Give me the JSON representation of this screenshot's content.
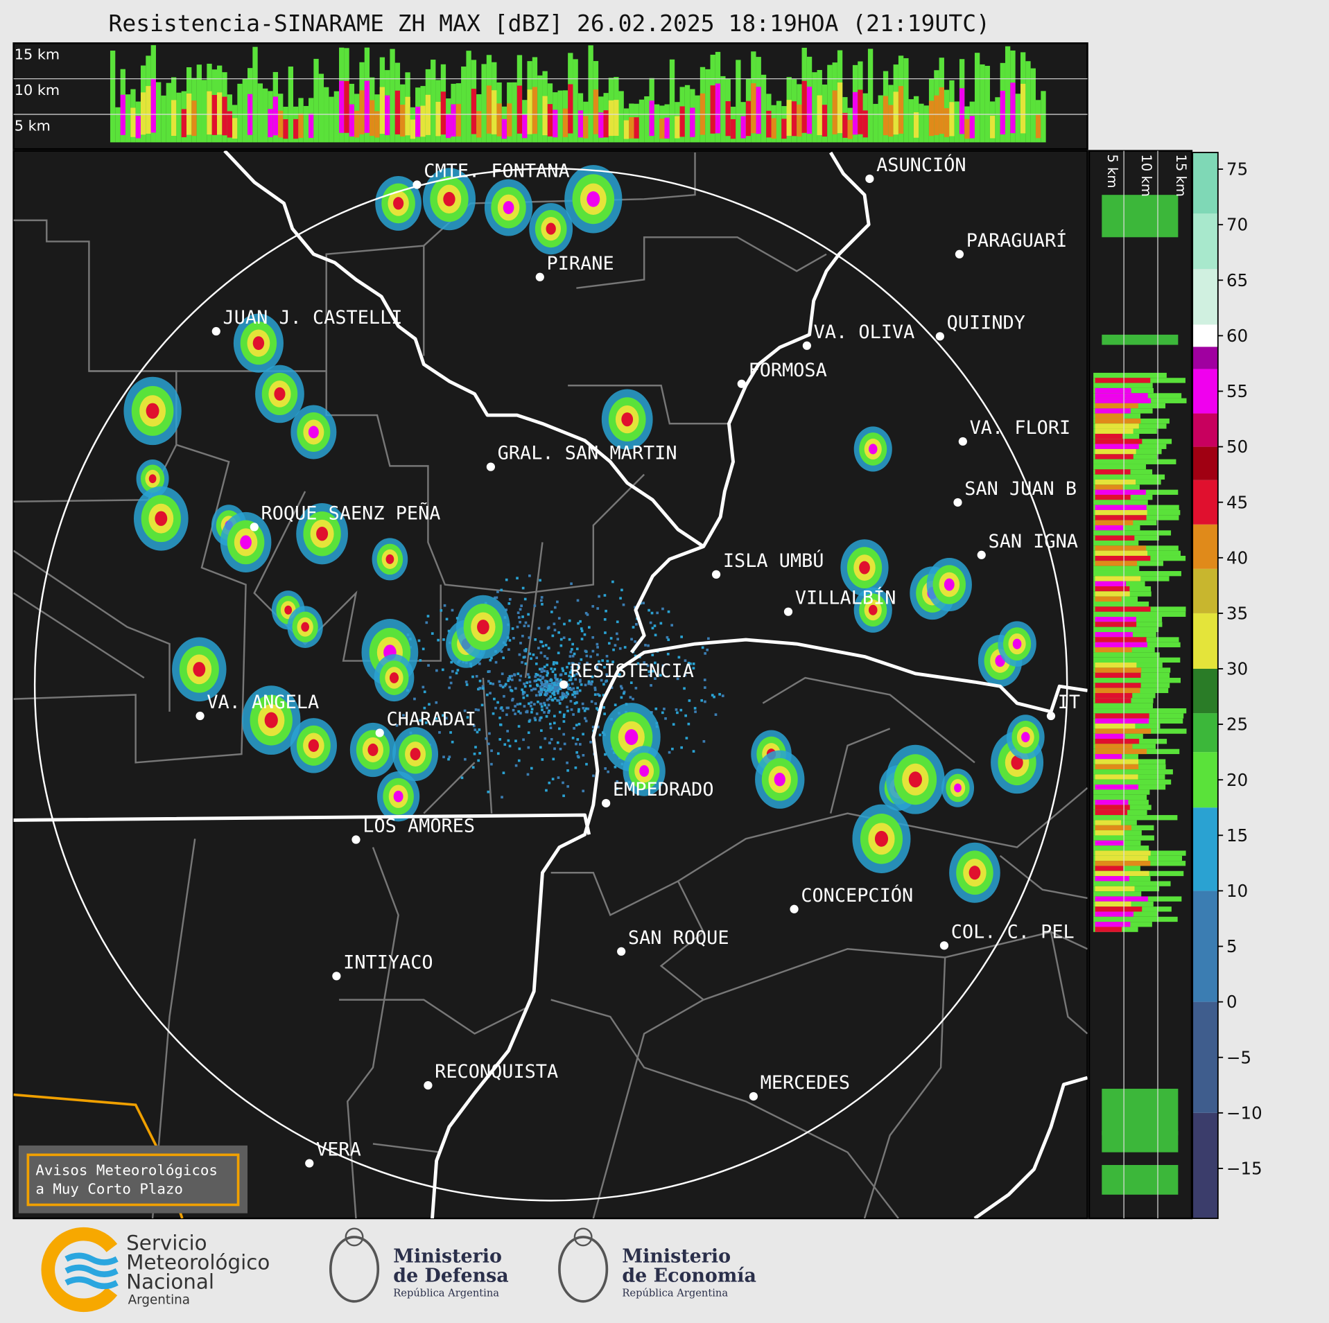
{
  "title": "Resistencia-SINARAME ZH MAX [dBZ] 26.02.2025 18:19HOA (21:19UTC)",
  "cross_section_top": {
    "labels": [
      "15 km",
      "10 km",
      "5 km"
    ]
  },
  "cross_section_right": {
    "labels": [
      "5 km",
      "10 km",
      "15 km"
    ]
  },
  "map": {
    "cities": [
      "CMTE. FONTANA",
      "PIRANE",
      "JUAN J. CASTELLI",
      "ASUNCIÓN",
      "PARAGUARÍ",
      "VA. OLIVA",
      "QUIINDY",
      "FORMOSA",
      "VA. FLORI",
      "GRAL. SAN MARTIN",
      "SAN JUAN B",
      "ROQUE SAENZ PEÑA",
      "SAN IGNA",
      "ISLA UMBÚ",
      "VILLALBÍN",
      "RESISTENCIA",
      "VA. ANGELA",
      "CHARADAI",
      "EMPEDRADO",
      "LOS AMORES",
      "CONCEPCIÓN",
      "COL. C. PEL",
      "SAN ROQUE",
      "INTIYACO",
      "RECONQUISTA",
      "MERCEDES",
      "VERA",
      "IT"
    ]
  },
  "notice": {
    "lines": [
      "Avisos Meteorológicos",
      "a Muy Corto Plazo"
    ]
  },
  "colorbar": {
    "type": "colorbar",
    "ylim": [
      -19.5,
      76.5
    ],
    "yticks": [
      75,
      70,
      65,
      60,
      55,
      50,
      45,
      40,
      35,
      30,
      25,
      20,
      15,
      10,
      5,
      0,
      {
        "value": -5,
        "label": "−5"
      },
      {
        "value": -10,
        "label": "−10"
      },
      {
        "value": -15,
        "label": "−15"
      }
    ],
    "bands": [
      {
        "from": -19.5,
        "to": -10,
        "color": "#3b3d6b"
      },
      {
        "from": -10,
        "to": 0,
        "color": "#3f5d8d"
      },
      {
        "from": 0,
        "to": 10,
        "color": "#3b7db2"
      },
      {
        "from": 10,
        "to": 17.5,
        "color": "#2aa2d2"
      },
      {
        "from": 17.5,
        "to": 22.5,
        "color": "#5ae23a"
      },
      {
        "from": 22.5,
        "to": 26,
        "color": "#3cb73a"
      },
      {
        "from": 26,
        "to": 30,
        "color": "#2a7c27"
      },
      {
        "from": 30,
        "to": 35,
        "color": "#e4e43a"
      },
      {
        "from": 35,
        "to": 39,
        "color": "#c8b62e"
      },
      {
        "from": 39,
        "to": 43,
        "color": "#e08a1a"
      },
      {
        "from": 43,
        "to": 47,
        "color": "#e0102e"
      },
      {
        "from": 47,
        "to": 50,
        "color": "#a00012"
      },
      {
        "from": 50,
        "to": 53,
        "color": "#c8005e"
      },
      {
        "from": 53,
        "to": 57,
        "color": "#f000ee"
      },
      {
        "from": 57,
        "to": 59,
        "color": "#a000a0"
      },
      {
        "from": 59,
        "to": 61,
        "color": "#ffffff"
      },
      {
        "from": 61,
        "to": 66,
        "color": "#d0f0e0"
      },
      {
        "from": 66,
        "to": 71,
        "color": "#a8e8cc"
      },
      {
        "from": 71,
        "to": 76.5,
        "color": "#7fd8b6"
      }
    ]
  },
  "footer": {
    "smn": [
      "Servicio",
      "Meteorológico",
      "Nacional",
      "Argentina"
    ],
    "defensa": [
      "Ministerio",
      "de Defensa",
      "República Argentina"
    ],
    "economia": [
      "Ministerio",
      "de Economía",
      "República Argentina"
    ]
  }
}
